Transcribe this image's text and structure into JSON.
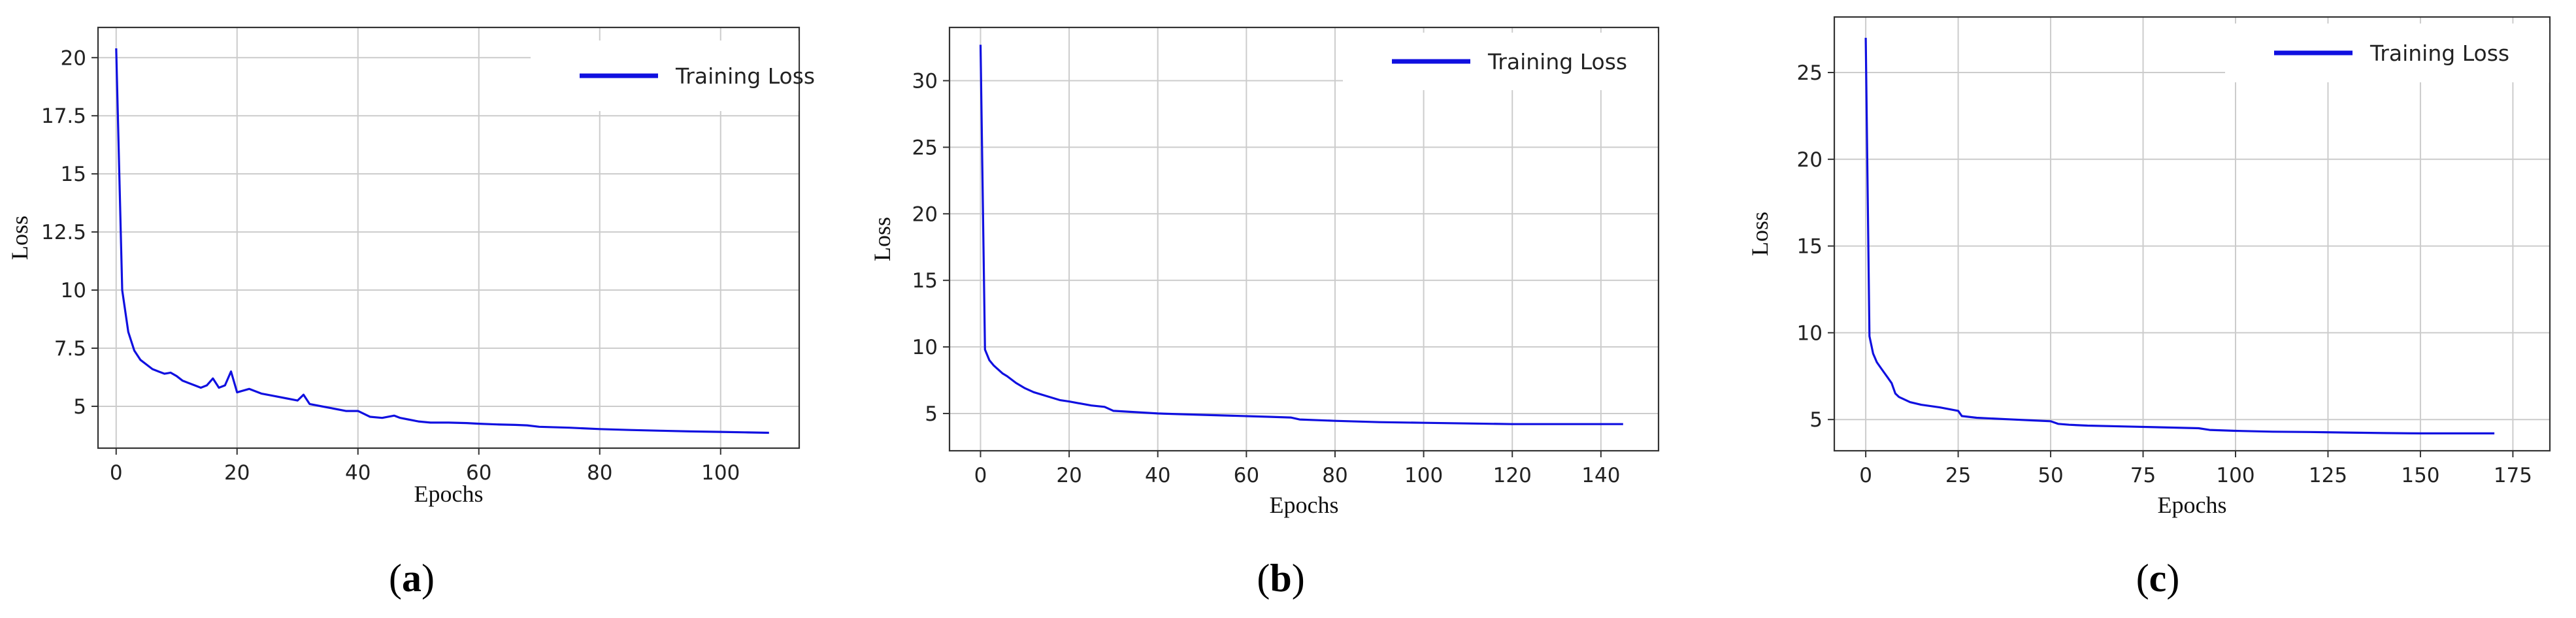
{
  "chart_data": [
    {
      "type": "line",
      "panel_label": "a",
      "xlabel": "Epochs",
      "ylabel": "Loss",
      "xlim": [
        -3,
        113
      ],
      "ylim": [
        3.2,
        21.3
      ],
      "xticks": [
        0,
        20,
        40,
        60,
        80,
        100
      ],
      "yticks": [
        5,
        7.5,
        10,
        12.5,
        15,
        17.5,
        20
      ],
      "ytick_labels": [
        "5",
        "7.5",
        "10",
        "12.5",
        "15",
        "17.5",
        "20"
      ],
      "grid": true,
      "legend_position": "top-right",
      "series": [
        {
          "name": "Training Loss",
          "color": "#1010e0",
          "x": [
            0,
            1,
            2,
            3,
            4,
            5,
            6,
            7,
            8,
            9,
            10,
            11,
            12,
            13,
            14,
            15,
            16,
            17,
            18,
            19,
            20,
            22,
            24,
            26,
            28,
            30,
            31,
            32,
            34,
            36,
            38,
            40,
            42,
            44,
            46,
            47,
            48,
            50,
            52,
            55,
            58,
            60,
            63,
            66,
            68,
            70,
            75,
            80,
            85,
            90,
            95,
            100,
            104,
            108
          ],
          "y": [
            20.4,
            10.0,
            8.2,
            7.4,
            7.0,
            6.8,
            6.6,
            6.5,
            6.4,
            6.45,
            6.3,
            6.1,
            6.0,
            5.9,
            5.8,
            5.9,
            6.2,
            5.8,
            5.9,
            6.5,
            5.6,
            5.75,
            5.55,
            5.45,
            5.35,
            5.25,
            5.5,
            5.1,
            5.0,
            4.9,
            4.8,
            4.8,
            4.55,
            4.5,
            4.6,
            4.5,
            4.45,
            4.35,
            4.3,
            4.3,
            4.28,
            4.25,
            4.22,
            4.2,
            4.18,
            4.12,
            4.08,
            4.02,
            3.98,
            3.95,
            3.92,
            3.9,
            3.88,
            3.86
          ]
        }
      ]
    },
    {
      "type": "line",
      "panel_label": "b",
      "xlabel": "Epochs",
      "ylabel": "Loss",
      "xlim": [
        -7,
        153
      ],
      "ylim": [
        2.2,
        34
      ],
      "xticks": [
        0,
        20,
        40,
        60,
        80,
        100,
        120,
        140
      ],
      "yticks": [
        5,
        10,
        15,
        20,
        25,
        30
      ],
      "ytick_labels": [
        "5",
        "10",
        "15",
        "20",
        "25",
        "30"
      ],
      "grid": true,
      "legend_position": "top-right",
      "series": [
        {
          "name": "Training Loss",
          "color": "#1010e0",
          "x": [
            0,
            1,
            2,
            3,
            4,
            5,
            6,
            8,
            10,
            12,
            15,
            18,
            20,
            25,
            28,
            30,
            35,
            40,
            45,
            50,
            55,
            60,
            65,
            70,
            72,
            80,
            85,
            90,
            100,
            110,
            120,
            130,
            140,
            145
          ],
          "y": [
            32.7,
            9.8,
            9.0,
            8.6,
            8.3,
            8.0,
            7.8,
            7.3,
            6.9,
            6.6,
            6.3,
            6.0,
            5.9,
            5.6,
            5.5,
            5.2,
            5.1,
            5.0,
            4.95,
            4.9,
            4.85,
            4.8,
            4.75,
            4.7,
            4.55,
            4.45,
            4.4,
            4.35,
            4.3,
            4.25,
            4.2,
            4.2,
            4.2,
            4.2
          ]
        }
      ]
    },
    {
      "type": "line",
      "panel_label": "c",
      "xlabel": "Epochs",
      "ylabel": "Loss",
      "xlim": [
        -8.5,
        185
      ],
      "ylim": [
        3.2,
        28.2
      ],
      "xticks": [
        0,
        25,
        50,
        75,
        100,
        125,
        150,
        175
      ],
      "yticks": [
        5,
        10,
        15,
        20,
        25
      ],
      "ytick_labels": [
        "5",
        "10",
        "15",
        "20",
        "25"
      ],
      "grid": true,
      "legend_position": "top-right",
      "series": [
        {
          "name": "Training Loss",
          "color": "#1010e0",
          "x": [
            0,
            1,
            2,
            3,
            4,
            5,
            6,
            7,
            8,
            9,
            10,
            12,
            15,
            20,
            25,
            26,
            30,
            35,
            40,
            45,
            50,
            52,
            55,
            60,
            70,
            80,
            90,
            93,
            100,
            110,
            120,
            130,
            140,
            150,
            160,
            170
          ],
          "y": [
            27.0,
            9.8,
            8.8,
            8.3,
            8.0,
            7.7,
            7.4,
            7.1,
            6.5,
            6.3,
            6.2,
            6.0,
            5.85,
            5.7,
            5.5,
            5.2,
            5.1,
            5.05,
            5.0,
            4.95,
            4.9,
            4.75,
            4.7,
            4.65,
            4.6,
            4.55,
            4.5,
            4.4,
            4.35,
            4.3,
            4.28,
            4.25,
            4.22,
            4.2,
            4.2,
            4.2
          ]
        }
      ]
    }
  ]
}
